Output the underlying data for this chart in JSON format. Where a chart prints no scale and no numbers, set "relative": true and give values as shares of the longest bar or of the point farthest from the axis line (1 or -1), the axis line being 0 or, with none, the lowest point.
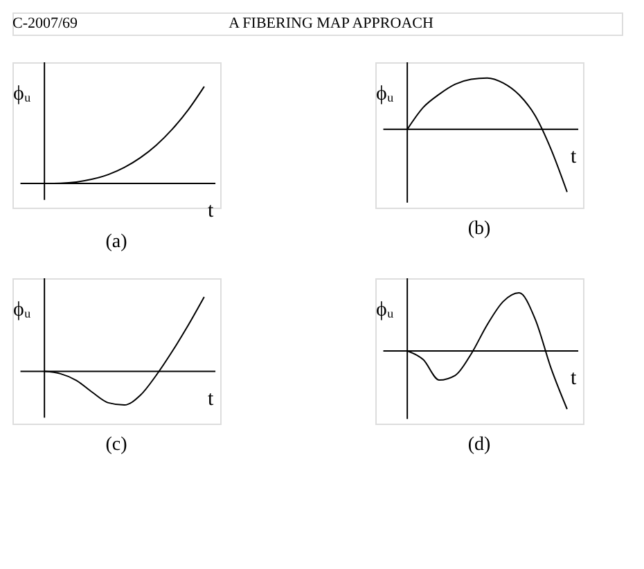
{
  "chart_data": [
    {
      "type": "other",
      "annotations": [
        "C-2007/69",
        "A FIBERING MAP APPROACH"
      ]
    },
    {
      "type": "line",
      "relative": true,
      "xlabel": "t",
      "ylabel": "ϕᵤ",
      "annotations": [
        "(a)"
      ],
      "categories": [
        null,
        null,
        null,
        null,
        null,
        null,
        null,
        null,
        null,
        null,
        null
      ],
      "series": [
        {
          "color": "#000000",
          "values": [
            0,
            0.0025,
            0.015,
            0.044,
            0.092,
            0.165,
            0.265,
            0.395,
            0.56,
            0.76,
            1
          ]
        }
      ]
    },
    {
      "type": "line",
      "relative": true,
      "xlabel": "t",
      "ylabel": "ϕᵤ",
      "annotations": [
        "(b)"
      ],
      "categories": [
        null,
        null,
        null,
        null,
        null,
        null,
        null,
        null,
        null,
        null,
        null
      ],
      "series": [
        {
          "color": "#000000",
          "values": [
            0,
            0.35,
            0.56,
            0.72,
            0.8,
            0.82,
            0.74,
            0.55,
            0.22,
            -0.32,
            -1
          ]
        }
      ]
    },
    {
      "type": "line",
      "relative": true,
      "xlabel": "t",
      "ylabel": "ϕᵤ",
      "annotations": [
        "(c)"
      ],
      "categories": [
        null,
        null,
        null,
        null,
        null,
        null,
        null,
        null,
        null,
        null,
        null
      ],
      "series": [
        {
          "color": "#000000",
          "values": [
            0,
            -0.03,
            -0.12,
            -0.28,
            -0.42,
            -0.45,
            -0.32,
            -0.05,
            0.27,
            0.62,
            1
          ]
        }
      ]
    },
    {
      "type": "line",
      "relative": true,
      "xlabel": "t",
      "ylabel": "ϕᵤ",
      "annotations": [
        "(d)"
      ],
      "categories": [
        null,
        null,
        null,
        null,
        null,
        null,
        null,
        null,
        null,
        null,
        null
      ],
      "series": [
        {
          "color": "#000000",
          "values": [
            0,
            -0.15,
            -0.5,
            -0.42,
            -0.05,
            0.45,
            0.85,
            1,
            0.55,
            -0.3,
            -1
          ]
        }
      ]
    }
  ]
}
